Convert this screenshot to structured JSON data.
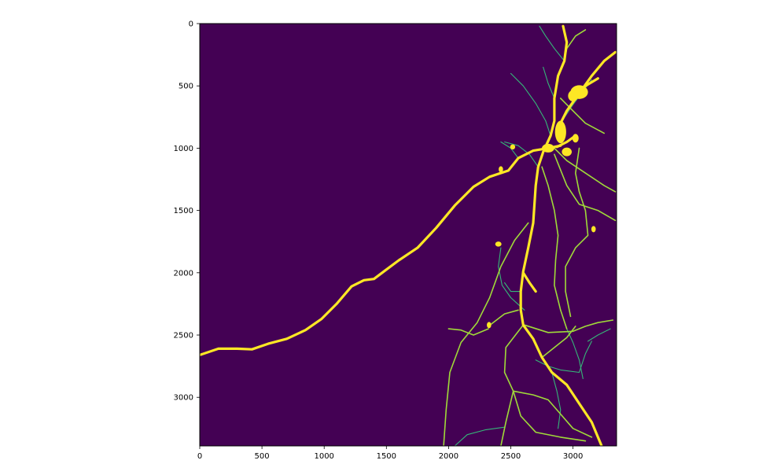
{
  "chart_data": {
    "type": "heatmap",
    "title": "",
    "xlabel": "",
    "ylabel": "",
    "xlim": [
      0,
      3350
    ],
    "ylim": [
      3390,
      0
    ],
    "x_ticks": [
      0,
      500,
      1000,
      1500,
      2000,
      2500,
      3000
    ],
    "y_ticks": [
      0,
      500,
      1000,
      1500,
      2000,
      2500,
      3000
    ],
    "colormap": "viridis",
    "colors": {
      "background": "#440154",
      "thick_branch": "#fde725",
      "mid_branch": "#a0da39",
      "thin_branch": "#35b779",
      "finest_branch": "#31688e"
    },
    "grid": false,
    "legend": "none",
    "thick_paths": [
      [
        [
          0,
          2660
        ],
        [
          150,
          2610
        ],
        [
          300,
          2610
        ],
        [
          420,
          2615
        ],
        [
          550,
          2570
        ],
        [
          700,
          2530
        ],
        [
          850,
          2460
        ],
        [
          980,
          2370
        ],
        [
          1100,
          2250
        ],
        [
          1220,
          2110
        ],
        [
          1320,
          2060
        ],
        [
          1400,
          2050
        ],
        [
          1480,
          1990
        ],
        [
          1600,
          1900
        ],
        [
          1750,
          1800
        ],
        [
          1900,
          1640
        ],
        [
          2050,
          1460
        ],
        [
          2200,
          1310
        ],
        [
          2330,
          1230
        ],
        [
          2480,
          1180
        ],
        [
          2560,
          1080
        ],
        [
          2680,
          1020
        ],
        [
          2800,
          1000
        ],
        [
          2900,
          980
        ]
      ],
      [
        [
          2920,
          20
        ],
        [
          2950,
          150
        ],
        [
          2930,
          300
        ],
        [
          2880,
          420
        ],
        [
          2850,
          600
        ],
        [
          2850,
          780
        ],
        [
          2820,
          900
        ],
        [
          2760,
          1030
        ],
        [
          2720,
          1150
        ],
        [
          2700,
          1300
        ],
        [
          2690,
          1450
        ],
        [
          2680,
          1600
        ],
        [
          2640,
          1800
        ],
        [
          2600,
          1990
        ],
        [
          2580,
          2150
        ],
        [
          2580,
          2300
        ],
        [
          2600,
          2420
        ],
        [
          2680,
          2530
        ],
        [
          2750,
          2680
        ],
        [
          2830,
          2800
        ],
        [
          2950,
          2900
        ],
        [
          3050,
          3050
        ],
        [
          3150,
          3200
        ],
        [
          3230,
          3390
        ]
      ],
      [
        [
          2900,
          800
        ],
        [
          2950,
          700
        ],
        [
          3050,
          560
        ],
        [
          3150,
          420
        ],
        [
          3250,
          300
        ],
        [
          3340,
          230
        ]
      ],
      [
        [
          3020,
          560
        ],
        [
          3100,
          500
        ],
        [
          3200,
          440
        ]
      ],
      [
        [
          2870,
          990
        ],
        [
          2950,
          950
        ],
        [
          3020,
          900
        ]
      ],
      [
        [
          2600,
          2000
        ],
        [
          2650,
          2080
        ],
        [
          2700,
          2150
        ]
      ]
    ],
    "medium_paths": [
      [
        [
          2640,
          1600
        ],
        [
          2530,
          1740
        ],
        [
          2420,
          1950
        ],
        [
          2330,
          2200
        ],
        [
          2230,
          2400
        ],
        [
          2100,
          2560
        ],
        [
          2010,
          2800
        ],
        [
          1980,
          3100
        ],
        [
          1960,
          3390
        ]
      ],
      [
        [
          2600,
          2420
        ],
        [
          2460,
          2600
        ],
        [
          2450,
          2800
        ],
        [
          2520,
          2950
        ],
        [
          2460,
          3200
        ],
        [
          2420,
          3390
        ]
      ],
      [
        [
          2610,
          2420
        ],
        [
          2800,
          2480
        ],
        [
          3000,
          2470
        ],
        [
          3100,
          2430
        ],
        [
          3200,
          2400
        ],
        [
          3320,
          2380
        ]
      ],
      [
        [
          2750,
          1150
        ],
        [
          2800,
          1300
        ],
        [
          2850,
          1500
        ],
        [
          2880,
          1700
        ],
        [
          2860,
          1900
        ],
        [
          2850,
          2100
        ],
        [
          2900,
          2300
        ],
        [
          2950,
          2450
        ]
      ],
      [
        [
          3050,
          1000
        ],
        [
          3020,
          1200
        ],
        [
          3050,
          1350
        ],
        [
          3100,
          1500
        ],
        [
          3120,
          1700
        ],
        [
          3020,
          1800
        ],
        [
          2940,
          1950
        ],
        [
          2940,
          2150
        ],
        [
          2980,
          2350
        ]
      ],
      [
        [
          2520,
          2950
        ],
        [
          2680,
          2980
        ],
        [
          2800,
          3020
        ],
        [
          2870,
          3100
        ],
        [
          3000,
          3250
        ],
        [
          3150,
          3320
        ]
      ],
      [
        [
          2320,
          2450
        ],
        [
          2200,
          2500
        ],
        [
          2100,
          2460
        ],
        [
          2000,
          2450
        ]
      ],
      [
        [
          2520,
          2950
        ],
        [
          2580,
          3150
        ],
        [
          2700,
          3280
        ],
        [
          2900,
          3320
        ],
        [
          3100,
          3350
        ]
      ],
      [
        [
          2900,
          600
        ],
        [
          3000,
          700
        ],
        [
          3100,
          800
        ],
        [
          3250,
          880
        ]
      ],
      [
        [
          2850,
          1000
        ],
        [
          2950,
          1100
        ],
        [
          3100,
          1200
        ],
        [
          3250,
          1300
        ],
        [
          3340,
          1350
        ]
      ],
      [
        [
          2850,
          1050
        ],
        [
          2950,
          1300
        ],
        [
          3050,
          1450
        ],
        [
          3200,
          1500
        ],
        [
          3340,
          1580
        ]
      ],
      [
        [
          2320,
          2430
        ],
        [
          2450,
          2330
        ],
        [
          2560,
          2300
        ]
      ],
      [
        [
          2750,
          2680
        ],
        [
          2850,
          2600
        ],
        [
          2950,
          2520
        ],
        [
          3020,
          2430
        ]
      ],
      [
        [
          2930,
          300
        ],
        [
          2950,
          200
        ],
        [
          3020,
          100
        ],
        [
          3100,
          50
        ]
      ]
    ],
    "thin_paths": [
      [
        [
          2610,
          2300
        ],
        [
          2500,
          2200
        ],
        [
          2430,
          2100
        ],
        [
          2400,
          1950
        ],
        [
          2420,
          1800
        ]
      ],
      [
        [
          2700,
          2700
        ],
        [
          2800,
          2750
        ],
        [
          2900,
          2780
        ],
        [
          3050,
          2800
        ],
        [
          3100,
          2650
        ],
        [
          3150,
          2550
        ]
      ],
      [
        [
          2820,
          900
        ],
        [
          2780,
          780
        ],
        [
          2700,
          640
        ],
        [
          2600,
          500
        ],
        [
          2500,
          400
        ]
      ],
      [
        [
          2720,
          1150
        ],
        [
          2650,
          1050
        ],
        [
          2560,
          980
        ],
        [
          2450,
          950
        ]
      ],
      [
        [
          2900,
          800
        ],
        [
          3000,
          650
        ],
        [
          3150,
          450
        ]
      ],
      [
        [
          2930,
          300
        ],
        [
          2850,
          200
        ],
        [
          2780,
          100
        ],
        [
          2730,
          20
        ]
      ],
      [
        [
          2850,
          600
        ],
        [
          2800,
          480
        ],
        [
          2760,
          350
        ]
      ],
      [
        [
          2050,
          3390
        ],
        [
          2150,
          3300
        ],
        [
          2300,
          3260
        ],
        [
          2450,
          3240
        ]
      ],
      [
        [
          2950,
          2450
        ],
        [
          3000,
          2560
        ],
        [
          3050,
          2700
        ],
        [
          3080,
          2850
        ]
      ],
      [
        [
          2830,
          2800
        ],
        [
          2870,
          2950
        ],
        [
          2900,
          3100
        ],
        [
          2880,
          3250
        ]
      ],
      [
        [
          3120,
          2550
        ],
        [
          3200,
          2500
        ],
        [
          3300,
          2450
        ]
      ],
      [
        [
          2580,
          2150
        ],
        [
          2500,
          2150
        ],
        [
          2450,
          2080
        ]
      ],
      [
        [
          2560,
          1080
        ],
        [
          2500,
          1000
        ],
        [
          2420,
          950
        ]
      ]
    ],
    "blobs": [
      {
        "x": 3050,
        "y": 550,
        "rx": 70,
        "ry": 55
      },
      {
        "x": 3000,
        "y": 580,
        "rx": 40,
        "ry": 45
      },
      {
        "x": 2900,
        "y": 870,
        "rx": 45,
        "ry": 90
      },
      {
        "x": 2800,
        "y": 1000,
        "rx": 50,
        "ry": 35
      },
      {
        "x": 2950,
        "y": 1030,
        "rx": 40,
        "ry": 35
      },
      {
        "x": 3020,
        "y": 920,
        "rx": 25,
        "ry": 35
      },
      {
        "x": 2400,
        "y": 1770,
        "rx": 25,
        "ry": 20
      },
      {
        "x": 3165,
        "y": 1650,
        "rx": 18,
        "ry": 25
      },
      {
        "x": 2420,
        "y": 1170,
        "rx": 18,
        "ry": 25
      },
      {
        "x": 2515,
        "y": 990,
        "rx": 20,
        "ry": 20
      },
      {
        "x": 2325,
        "y": 2420,
        "rx": 18,
        "ry": 25
      }
    ]
  }
}
